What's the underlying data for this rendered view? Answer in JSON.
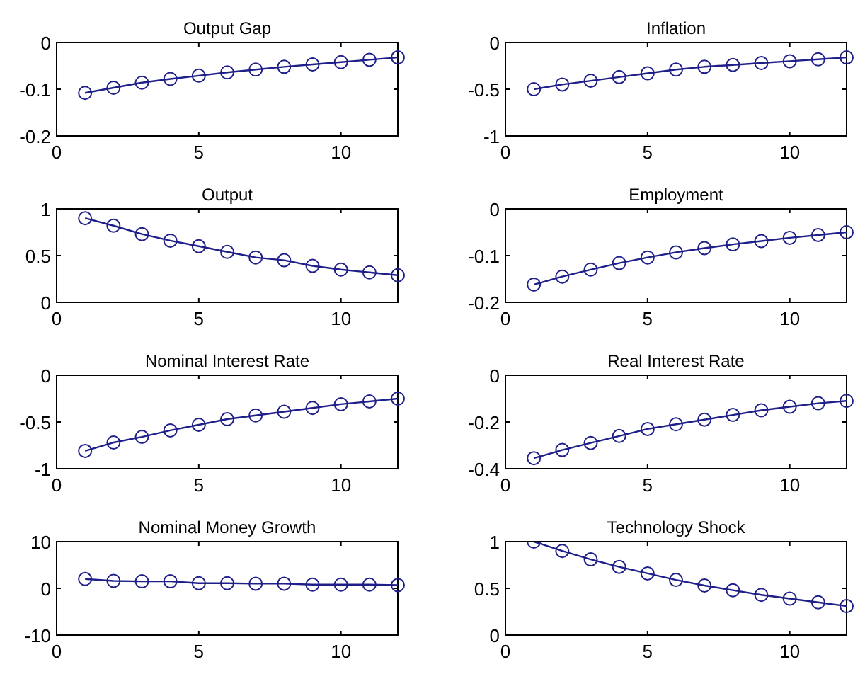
{
  "chart_data": [
    {
      "type": "line",
      "title": "Output Gap",
      "x": [
        1,
        2,
        3,
        4,
        5,
        6,
        7,
        8,
        9,
        10,
        11,
        12
      ],
      "xlim": [
        0,
        12
      ],
      "xticks": [
        0,
        5,
        10
      ],
      "ylim": [
        -0.2,
        0
      ],
      "yticks": [
        -0.2,
        -0.1,
        0
      ],
      "marker": "circle",
      "line_style": "solid",
      "series": [
        {
          "color": "#1f1f8a",
          "values": [
            -0.108,
            -0.097,
            -0.086,
            -0.078,
            -0.071,
            -0.064,
            -0.058,
            -0.052,
            -0.047,
            -0.042,
            -0.037,
            -0.032
          ]
        }
      ]
    },
    {
      "type": "line",
      "title": "Inflation",
      "x": [
        1,
        2,
        3,
        4,
        5,
        6,
        7,
        8,
        9,
        10,
        11,
        12
      ],
      "xlim": [
        0,
        12
      ],
      "xticks": [
        0,
        5,
        10
      ],
      "ylim": [
        -1,
        0
      ],
      "yticks": [
        -1,
        -0.5,
        0
      ],
      "marker": "circle",
      "line_style": "solid",
      "series": [
        {
          "color": "#1f1f8a",
          "values": [
            -0.5,
            -0.45,
            -0.41,
            -0.37,
            -0.33,
            -0.29,
            -0.26,
            -0.24,
            -0.22,
            -0.2,
            -0.18,
            -0.16
          ]
        }
      ]
    },
    {
      "type": "line",
      "title": "Output",
      "x": [
        1,
        2,
        3,
        4,
        5,
        6,
        7,
        8,
        9,
        10,
        11,
        12
      ],
      "xlim": [
        0,
        12
      ],
      "xticks": [
        0,
        5,
        10
      ],
      "ylim": [
        0,
        1
      ],
      "yticks": [
        0,
        0.5,
        1
      ],
      "marker": "circle",
      "line_style": "solid",
      "series": [
        {
          "color": "#1f1f8a",
          "values": [
            0.9,
            0.82,
            0.73,
            0.66,
            0.6,
            0.54,
            0.48,
            0.45,
            0.39,
            0.35,
            0.32,
            0.29
          ]
        }
      ]
    },
    {
      "type": "line",
      "title": "Employment",
      "x": [
        1,
        2,
        3,
        4,
        5,
        6,
        7,
        8,
        9,
        10,
        11,
        12
      ],
      "xlim": [
        0,
        12
      ],
      "xticks": [
        0,
        5,
        10
      ],
      "ylim": [
        -0.2,
        0
      ],
      "yticks": [
        -0.2,
        -0.1,
        0
      ],
      "marker": "circle",
      "line_style": "solid",
      "series": [
        {
          "color": "#1f1f8a",
          "values": [
            -0.162,
            -0.145,
            -0.13,
            -0.116,
            -0.104,
            -0.093,
            -0.084,
            -0.076,
            -0.069,
            -0.062,
            -0.056,
            -0.05
          ]
        }
      ]
    },
    {
      "type": "line",
      "title": "Nominal Interest Rate",
      "x": [
        1,
        2,
        3,
        4,
        5,
        6,
        7,
        8,
        9,
        10,
        11,
        12
      ],
      "xlim": [
        0,
        12
      ],
      "xticks": [
        0,
        5,
        10
      ],
      "ylim": [
        -1,
        0
      ],
      "yticks": [
        -1,
        -0.5,
        0
      ],
      "marker": "circle",
      "line_style": "solid",
      "series": [
        {
          "color": "#1f1f8a",
          "values": [
            -0.81,
            -0.72,
            -0.66,
            -0.59,
            -0.53,
            -0.47,
            -0.43,
            -0.39,
            -0.35,
            -0.31,
            -0.28,
            -0.25
          ]
        }
      ]
    },
    {
      "type": "line",
      "title": "Real Interest Rate",
      "x": [
        1,
        2,
        3,
        4,
        5,
        6,
        7,
        8,
        9,
        10,
        11,
        12
      ],
      "xlim": [
        0,
        12
      ],
      "xticks": [
        0,
        5,
        10
      ],
      "ylim": [
        -0.4,
        0
      ],
      "yticks": [
        -0.4,
        -0.2,
        0
      ],
      "marker": "circle",
      "line_style": "solid",
      "series": [
        {
          "color": "#1f1f8a",
          "values": [
            -0.355,
            -0.32,
            -0.29,
            -0.26,
            -0.23,
            -0.21,
            -0.19,
            -0.17,
            -0.15,
            -0.135,
            -0.12,
            -0.11
          ]
        }
      ]
    },
    {
      "type": "line",
      "title": "Nominal Money Growth",
      "x": [
        1,
        2,
        3,
        4,
        5,
        6,
        7,
        8,
        9,
        10,
        11,
        12
      ],
      "xlim": [
        0,
        12
      ],
      "xticks": [
        0,
        5,
        10
      ],
      "ylim": [
        -10,
        10
      ],
      "yticks": [
        -10,
        0,
        10
      ],
      "marker": "circle",
      "line_style": "solid",
      "series": [
        {
          "color": "#1f1f8a",
          "values": [
            2,
            1.6,
            1.5,
            1.5,
            1.1,
            1.1,
            1,
            1,
            0.8,
            0.8,
            0.8,
            0.7
          ]
        }
      ]
    },
    {
      "type": "line",
      "title": "Technology Shock",
      "x": [
        1,
        2,
        3,
        4,
        5,
        6,
        7,
        8,
        9,
        10,
        11,
        12
      ],
      "xlim": [
        0,
        12
      ],
      "xticks": [
        0,
        5,
        10
      ],
      "ylim": [
        0,
        1
      ],
      "yticks": [
        0,
        0.5,
        1
      ],
      "marker": "circle",
      "line_style": "solid",
      "series": [
        {
          "color": "#1f1f8a",
          "values": [
            1,
            0.9,
            0.81,
            0.73,
            0.66,
            0.59,
            0.53,
            0.48,
            0.43,
            0.39,
            0.35,
            0.31
          ]
        }
      ]
    }
  ]
}
